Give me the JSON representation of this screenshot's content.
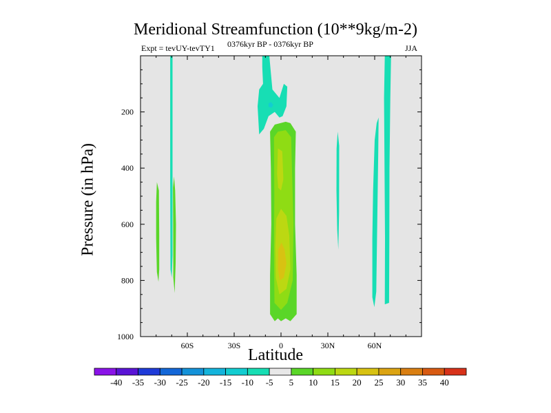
{
  "chart_data": {
    "type": "contour",
    "title": "Meridional Streamfunction (10**9kg/m-2)",
    "left_string": "Expt = tevUY-tevTY1",
    "center_string": "0376kyr BP - 0376kyr BP",
    "right_string": "JJA",
    "xlabel": "Latitude",
    "ylabel": "Pressure (in hPa)",
    "xlim": [
      -90,
      90
    ],
    "ylim": [
      1000,
      0
    ],
    "x_ticks": [
      {
        "value": -60,
        "label": "60S"
      },
      {
        "value": -30,
        "label": "30S"
      },
      {
        "value": 0,
        "label": "0"
      },
      {
        "value": 30,
        "label": "30N"
      },
      {
        "value": 60,
        "label": "60N"
      }
    ],
    "y_ticks": [
      {
        "value": 200,
        "label": "200"
      },
      {
        "value": 400,
        "label": "400"
      },
      {
        "value": 600,
        "label": "600"
      },
      {
        "value": 800,
        "label": "800"
      },
      {
        "value": 1000,
        "label": "1000"
      }
    ],
    "background_color": "#e5e5e5",
    "contour_levels": [
      -40,
      -35,
      -30,
      -25,
      -20,
      -15,
      -10,
      -5,
      5,
      10,
      15,
      20,
      25,
      30,
      35,
      40
    ],
    "colorbar_colors": [
      "#8a13e8",
      "#5a14d6",
      "#1f3bd9",
      "#1367d8",
      "#1492d9",
      "#14b4dc",
      "#13cdd1",
      "#17deb4",
      "#e8e8e8",
      "#5ad628",
      "#8fdc14",
      "#bcd812",
      "#d8c212",
      "#dca412",
      "#da7f12",
      "#d85a12",
      "#d8321a"
    ],
    "regions": [
      {
        "name": "sh-high-lat-negative-band",
        "level": "-10 to -5",
        "color": "#17deb4",
        "outline": [
          [
            -71,
            0
          ],
          [
            -69.5,
            0
          ],
          [
            -69.5,
            710
          ],
          [
            -70,
            790
          ],
          [
            -70.8,
            760
          ],
          [
            -71,
            450
          ]
        ]
      },
      {
        "name": "sh-high-lat-positive-west",
        "level": "5 to 10",
        "color": "#5ad628",
        "outline": [
          [
            -79.5,
            450
          ],
          [
            -78.2,
            480
          ],
          [
            -78,
            640
          ],
          [
            -78,
            760
          ],
          [
            -78.5,
            805
          ],
          [
            -79.5,
            770
          ],
          [
            -80,
            650
          ],
          [
            -80,
            520
          ]
        ]
      },
      {
        "name": "sh-high-lat-positive-east",
        "level": "5 to 10",
        "color": "#5ad628",
        "outline": [
          [
            -68.5,
            430
          ],
          [
            -67.8,
            480
          ],
          [
            -67.3,
            600
          ],
          [
            -67.5,
            740
          ],
          [
            -68.1,
            845
          ],
          [
            -69,
            790
          ],
          [
            -69.1,
            600
          ],
          [
            -69.2,
            470
          ]
        ]
      },
      {
        "name": "equatorial-negative-upper",
        "level": "-10 to -5",
        "color": "#17deb4",
        "outline": [
          [
            -12,
            0
          ],
          [
            -7.5,
            0
          ],
          [
            -5.5,
            120
          ],
          [
            -1,
            150
          ],
          [
            1.8,
            100
          ],
          [
            4,
            110
          ],
          [
            3.5,
            180
          ],
          [
            1,
            215
          ],
          [
            -1,
            220
          ],
          [
            -4,
            200
          ],
          [
            -8,
            215
          ],
          [
            -11,
            260
          ],
          [
            -14,
            280
          ],
          [
            -15,
            180
          ],
          [
            -14,
            120
          ],
          [
            -11.5,
            100
          ],
          [
            -12,
            40
          ]
        ]
      },
      {
        "name": "equatorial-negative-core",
        "level": "-15 to -10",
        "color": "#13cdd1",
        "outline": [
          [
            -8,
            170
          ],
          [
            -6.5,
            165
          ],
          [
            -5,
            175
          ],
          [
            -6,
            185
          ],
          [
            -8,
            182
          ]
        ]
      },
      {
        "name": "equatorial-positive-outer",
        "level": "5 to 10",
        "color": "#5ad628",
        "outline": [
          [
            -4,
            245
          ],
          [
            -7,
            270
          ],
          [
            -6.5,
            400
          ],
          [
            -6.2,
            600
          ],
          [
            -7,
            780
          ],
          [
            -7,
            920
          ],
          [
            -4,
            945
          ],
          [
            -2,
            935
          ],
          [
            0,
            945
          ],
          [
            3,
            935
          ],
          [
            6,
            945
          ],
          [
            10,
            920
          ],
          [
            10,
            780
          ],
          [
            9,
            600
          ],
          [
            9,
            400
          ],
          [
            9.5,
            270
          ],
          [
            6,
            240
          ],
          [
            3,
            235
          ]
        ]
      },
      {
        "name": "equatorial-positive-10",
        "level": "10 to 15",
        "color": "#8fdc14",
        "outline": [
          [
            -2,
            270
          ],
          [
            -4.5,
            290
          ],
          [
            -4.3,
            500
          ],
          [
            -4.5,
            700
          ],
          [
            -4.2,
            880
          ],
          [
            0,
            905
          ],
          [
            4,
            880
          ],
          [
            7.5,
            800
          ],
          [
            8,
            600
          ],
          [
            7,
            400
          ],
          [
            6.5,
            290
          ],
          [
            3,
            265
          ]
        ]
      },
      {
        "name": "equatorial-positive-15-upper",
        "level": "15 to 20",
        "color": "#bcd812",
        "outline": [
          [
            -2,
            330
          ],
          [
            -2.5,
            420
          ],
          [
            -1.8,
            470
          ],
          [
            0,
            480
          ],
          [
            1.5,
            440
          ],
          [
            0.8,
            340
          ]
        ]
      },
      {
        "name": "equatorial-positive-15-lower",
        "level": "15 to 20",
        "color": "#bcd812",
        "outline": [
          [
            -3,
            580
          ],
          [
            -3.6,
            680
          ],
          [
            -3.3,
            790
          ],
          [
            -1,
            850
          ],
          [
            3.5,
            830
          ],
          [
            6,
            760
          ],
          [
            5.3,
            640
          ],
          [
            3.5,
            570
          ],
          [
            0,
            545
          ]
        ]
      },
      {
        "name": "equatorial-positive-20",
        "level": "20 to 25",
        "color": "#d8c212",
        "outline": [
          [
            -1.8,
            690
          ],
          [
            -2,
            760
          ],
          [
            -0.8,
            800
          ],
          [
            1.8,
            790
          ],
          [
            3.5,
            740
          ],
          [
            2.3,
            690
          ],
          [
            0.3,
            665
          ]
        ]
      },
      {
        "name": "nh-subtropical-negative-band",
        "level": "-10 to -5",
        "color": "#17deb4",
        "outline": [
          [
            36.3,
            270
          ],
          [
            37.3,
            320
          ],
          [
            37.2,
            560
          ],
          [
            36.7,
            690
          ],
          [
            36,
            620
          ],
          [
            35.5,
            480
          ],
          [
            35.6,
            330
          ]
        ]
      },
      {
        "name": "nh-midlat-negative-band",
        "level": "-10 to -5",
        "color": "#17deb4",
        "outline": [
          [
            62.5,
            220
          ],
          [
            61.3,
            240
          ],
          [
            60,
            300
          ],
          [
            59,
            480
          ],
          [
            58.5,
            650
          ],
          [
            58.5,
            860
          ],
          [
            59.8,
            895
          ],
          [
            61,
            840
          ],
          [
            61.5,
            650
          ],
          [
            62,
            460
          ],
          [
            62.3,
            340
          ]
        ]
      },
      {
        "name": "nh-high-lat-negative-band",
        "level": "-10 to -5",
        "color": "#17deb4",
        "outline": [
          [
            66.5,
            0
          ],
          [
            70.5,
            0
          ],
          [
            70,
            150
          ],
          [
            69.5,
            400
          ],
          [
            69.4,
            650
          ],
          [
            69.2,
            880
          ],
          [
            66.5,
            885
          ],
          [
            66.6,
            650
          ],
          [
            66.3,
            400
          ],
          [
            66,
            150
          ]
        ]
      }
    ]
  }
}
